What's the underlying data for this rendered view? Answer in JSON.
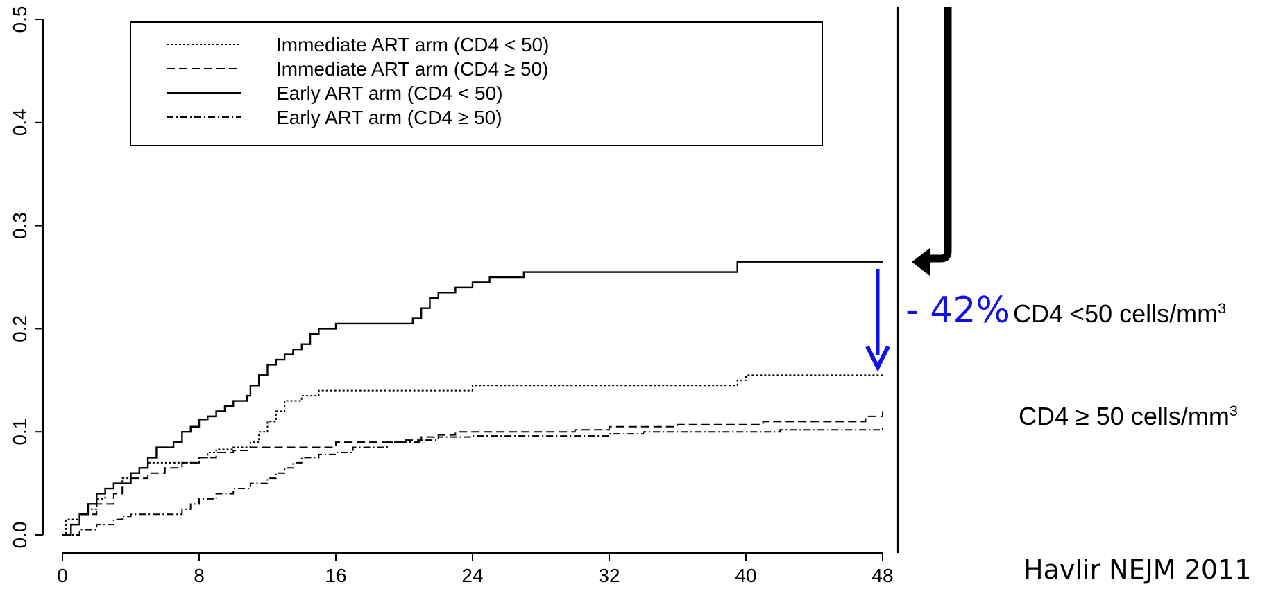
{
  "chart_data": {
    "type": "line",
    "step": true,
    "xlim": [
      0,
      48
    ],
    "ylim": [
      0,
      0.5
    ],
    "xticks": [
      "0",
      "8",
      "16",
      "24",
      "32",
      "40",
      "48"
    ],
    "yticks": [
      "0.0",
      "0.1",
      "0.2",
      "0.3",
      "0.4",
      "0.5"
    ],
    "xlabel": "",
    "ylabel": "",
    "legend": {
      "placement": "top",
      "entries": [
        "Immediate ART arm (CD4 < 50)",
        "Immediate ART arm (CD4 ≥  50)",
        "Early ART arm (CD4 < 50)",
        "Early ART arm (CD4 ≥ 50)"
      ]
    },
    "series": [
      {
        "name": "Immediate ART arm (CD4 < 50)",
        "style": "dotted",
        "points": [
          [
            0,
            0
          ],
          [
            0.2,
            0.015
          ],
          [
            1,
            0.02
          ],
          [
            1.5,
            0.025
          ],
          [
            2,
            0.035
          ],
          [
            2.5,
            0.045
          ],
          [
            3,
            0.05
          ],
          [
            3.5,
            0.055
          ],
          [
            4,
            0.06
          ],
          [
            4.5,
            0.065
          ],
          [
            5,
            0.07
          ],
          [
            7,
            0.07
          ],
          [
            8,
            0.075
          ],
          [
            8.5,
            0.08
          ],
          [
            9,
            0.083
          ],
          [
            10,
            0.085
          ],
          [
            11,
            0.09
          ],
          [
            11.5,
            0.1
          ],
          [
            12,
            0.11
          ],
          [
            12.5,
            0.12
          ],
          [
            13,
            0.13
          ],
          [
            14,
            0.135
          ],
          [
            15,
            0.14
          ],
          [
            24,
            0.145
          ],
          [
            39.5,
            0.15
          ],
          [
            40,
            0.155
          ],
          [
            48,
            0.155
          ]
        ]
      },
      {
        "name": "Immediate ART arm (CD4 ≥  50)",
        "style": "dashed",
        "points": [
          [
            0,
            0
          ],
          [
            0.5,
            0.01
          ],
          [
            1,
            0.02
          ],
          [
            2,
            0.03
          ],
          [
            3,
            0.04
          ],
          [
            3.5,
            0.05
          ],
          [
            4,
            0.055
          ],
          [
            5,
            0.06
          ],
          [
            6,
            0.065
          ],
          [
            7,
            0.07
          ],
          [
            8,
            0.075
          ],
          [
            9,
            0.08
          ],
          [
            10,
            0.082
          ],
          [
            11,
            0.085
          ],
          [
            12,
            0.085
          ],
          [
            16,
            0.09
          ],
          [
            20,
            0.092
          ],
          [
            21,
            0.095
          ],
          [
            22,
            0.097
          ],
          [
            23,
            0.1
          ],
          [
            30,
            0.102
          ],
          [
            32,
            0.105
          ],
          [
            36,
            0.107
          ],
          [
            41,
            0.11
          ],
          [
            47,
            0.115
          ],
          [
            48,
            0.12
          ]
        ]
      },
      {
        "name": "Early ART arm (CD4 < 50)",
        "style": "solid",
        "points": [
          [
            0,
            0
          ],
          [
            0.5,
            0.01
          ],
          [
            1,
            0.02
          ],
          [
            1.5,
            0.03
          ],
          [
            2,
            0.04
          ],
          [
            2.5,
            0.045
          ],
          [
            3,
            0.05
          ],
          [
            4,
            0.06
          ],
          [
            4.5,
            0.065
          ],
          [
            5,
            0.075
          ],
          [
            5.5,
            0.085
          ],
          [
            6.5,
            0.09
          ],
          [
            7,
            0.1
          ],
          [
            7.5,
            0.105
          ],
          [
            8,
            0.112
          ],
          [
            8.5,
            0.115
          ],
          [
            9,
            0.12
          ],
          [
            9.5,
            0.125
          ],
          [
            10,
            0.13
          ],
          [
            10.8,
            0.135
          ],
          [
            11,
            0.145
          ],
          [
            11.5,
            0.155
          ],
          [
            12,
            0.165
          ],
          [
            12.5,
            0.17
          ],
          [
            13,
            0.175
          ],
          [
            13.5,
            0.18
          ],
          [
            14,
            0.185
          ],
          [
            14.5,
            0.195
          ],
          [
            15,
            0.2
          ],
          [
            16,
            0.205
          ],
          [
            18,
            0.205
          ],
          [
            20.5,
            0.21
          ],
          [
            21,
            0.22
          ],
          [
            21.5,
            0.23
          ],
          [
            22,
            0.235
          ],
          [
            23,
            0.24
          ],
          [
            24,
            0.245
          ],
          [
            25,
            0.25
          ],
          [
            27,
            0.255
          ],
          [
            39.5,
            0.265
          ],
          [
            48,
            0.265
          ]
        ]
      },
      {
        "name": "Early ART arm (CD4 ≥ 50)",
        "style": "dashdot",
        "points": [
          [
            0,
            0
          ],
          [
            1,
            0.005
          ],
          [
            2,
            0.01
          ],
          [
            3,
            0.015
          ],
          [
            3.5,
            0.018
          ],
          [
            4,
            0.02
          ],
          [
            6,
            0.02
          ],
          [
            7,
            0.025
          ],
          [
            7.5,
            0.03
          ],
          [
            8,
            0.035
          ],
          [
            9,
            0.04
          ],
          [
            10,
            0.045
          ],
          [
            11,
            0.05
          ],
          [
            12,
            0.055
          ],
          [
            12.5,
            0.06
          ],
          [
            13,
            0.065
          ],
          [
            13.5,
            0.07
          ],
          [
            14,
            0.075
          ],
          [
            15,
            0.078
          ],
          [
            16,
            0.08
          ],
          [
            17,
            0.085
          ],
          [
            19,
            0.09
          ],
          [
            21,
            0.092
          ],
          [
            22,
            0.095
          ],
          [
            24,
            0.096
          ],
          [
            32,
            0.098
          ],
          [
            34,
            0.1
          ],
          [
            42,
            0.102
          ],
          [
            48,
            0.105
          ]
        ]
      }
    ]
  },
  "annotations": {
    "reduction_pct": "- 42%",
    "cd4_low_label": "CD4 <50 cells/mm",
    "cd4_low_sup": "3",
    "cd4_high_label": "CD4 ≥ 50 cells/mm",
    "cd4_high_sup": "3",
    "citation": "Havlir NEJM 2011"
  },
  "colors": {
    "axis": "#000000",
    "line": "#000000",
    "annotation_arrow": "#1010e8",
    "black_arrow": "#000000"
  }
}
